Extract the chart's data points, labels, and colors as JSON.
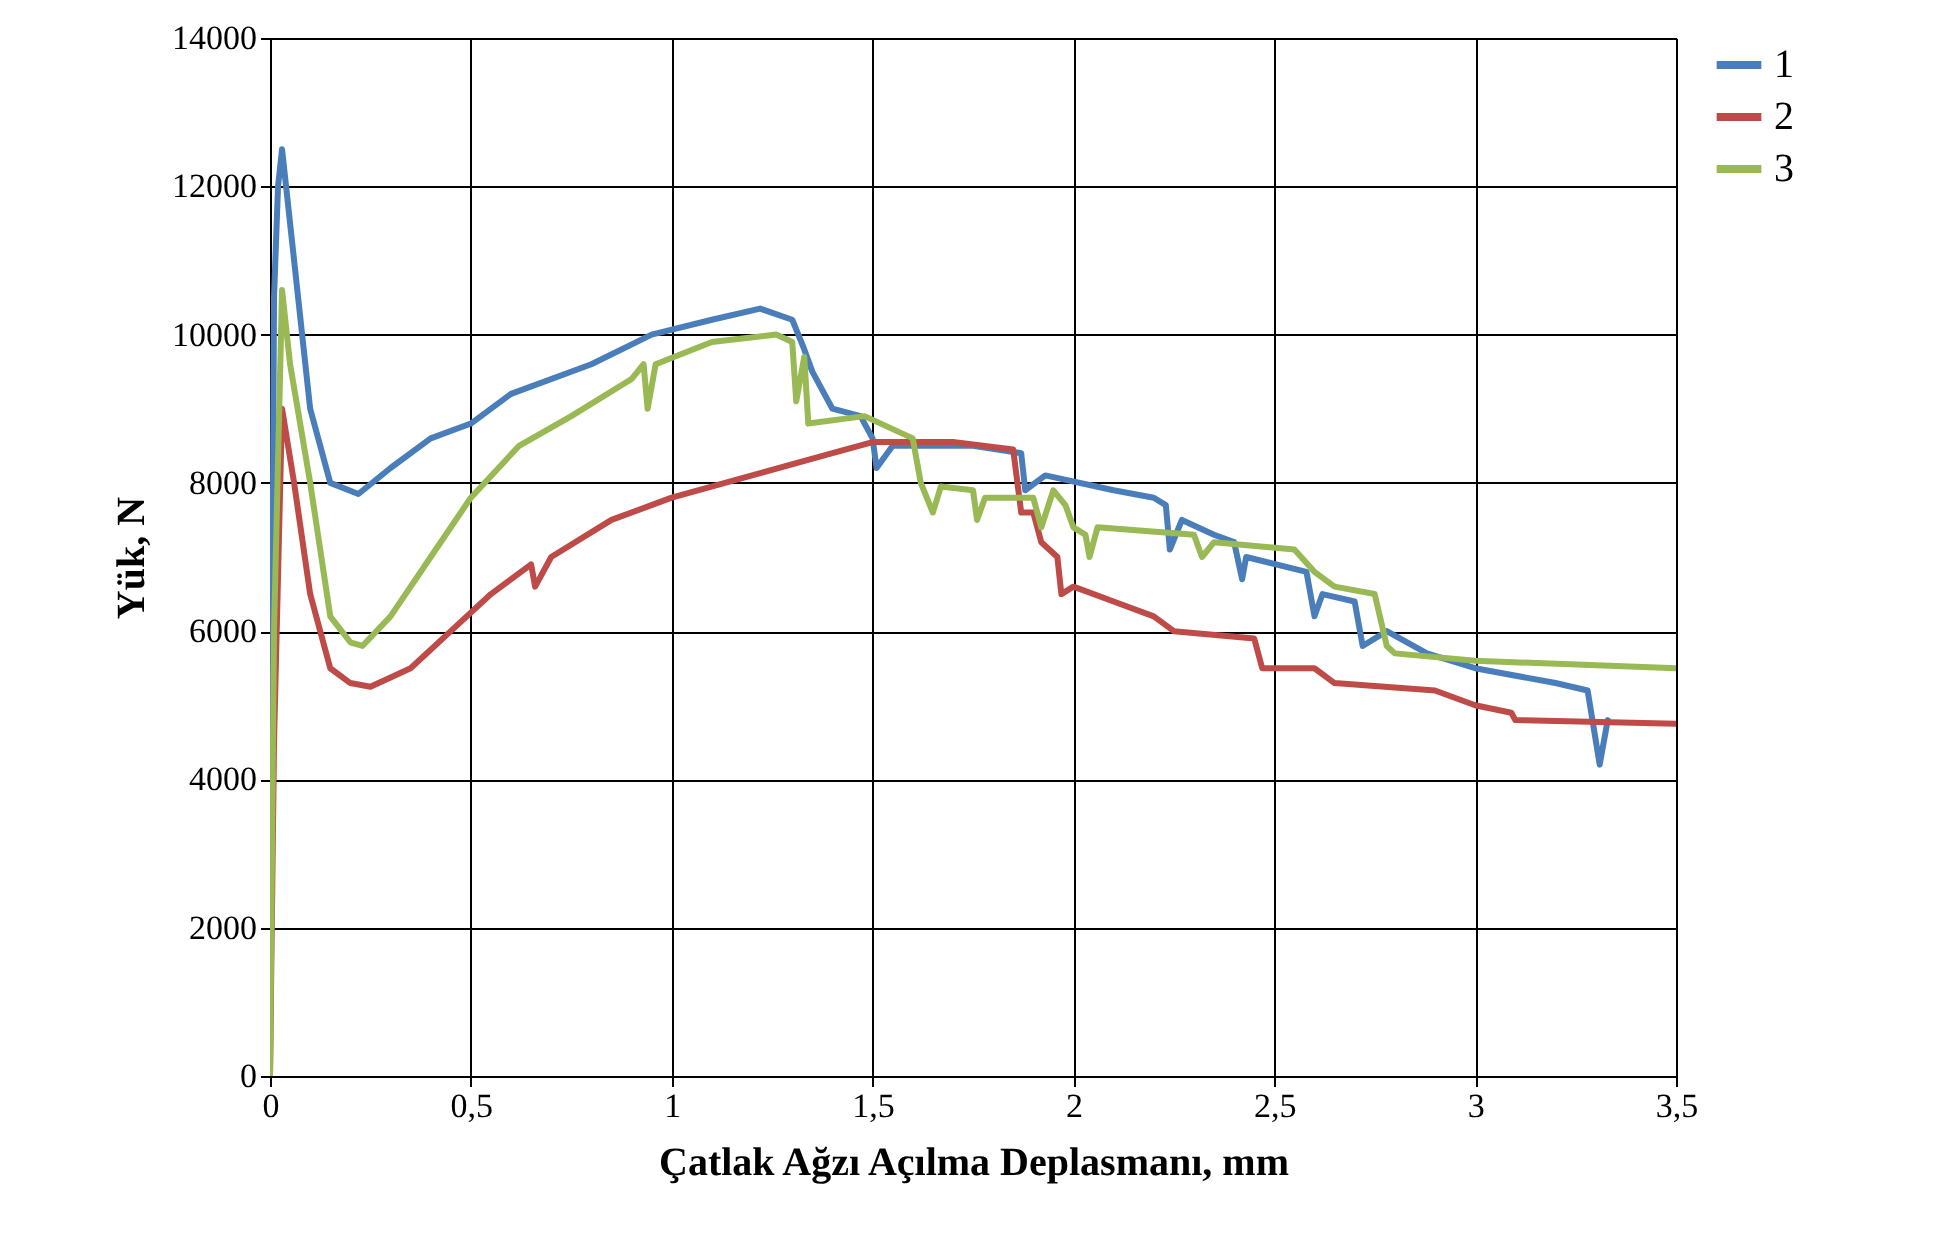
{
  "chart_data": {
    "type": "line",
    "xlabel": "Çatlak Ağzı Açılma Deplasmanı, mm",
    "ylabel": "Yük, N",
    "xlim": [
      0,
      3.5
    ],
    "xticks": [
      0,
      {
        "value": 0.5,
        "label": "0,5"
      },
      1,
      {
        "value": 1.5,
        "label": "1,5"
      },
      2,
      {
        "value": 2.5,
        "label": "2,5"
      },
      3,
      {
        "value": 3.5,
        "label": "3,5"
      }
    ],
    "ylim": [
      0,
      14000
    ],
    "yticks": [
      0,
      2000,
      4000,
      6000,
      8000,
      10000,
      12000,
      14000
    ],
    "grid": true,
    "legend": "right",
    "marker": "none",
    "line_style": "solid",
    "series": [
      {
        "name": "1",
        "color": "#4a7ebb",
        "x": [
          0,
          0.01,
          0.02,
          0.03,
          0.05,
          0.1,
          0.15,
          0.22,
          0.3,
          0.4,
          0.5,
          0.6,
          0.8,
          0.95,
          1.1,
          1.22,
          1.3,
          1.33,
          1.35,
          1.4,
          1.47,
          1.5,
          1.51,
          1.55,
          1.75,
          1.87,
          1.88,
          1.93,
          2.1,
          2.2,
          2.23,
          2.24,
          2.27,
          2.35,
          2.4,
          2.42,
          2.43,
          2.58,
          2.6,
          2.62,
          2.7,
          2.72,
          2.78,
          2.88,
          3.0,
          3.2,
          3.28,
          3.31,
          3.33
        ],
        "values": [
          0,
          10500,
          12000,
          12500,
          11500,
          9000,
          8000,
          7850,
          8200,
          8600,
          8800,
          9200,
          9600,
          10000,
          10200,
          10350,
          10200,
          9800,
          9500,
          9000,
          8900,
          8600,
          8200,
          8500,
          8500,
          8400,
          7900,
          8100,
          7900,
          7800,
          7700,
          7100,
          7500,
          7300,
          7200,
          6700,
          7000,
          6800,
          6200,
          6500,
          6400,
          5800,
          6000,
          5700,
          5500,
          5300,
          5200,
          4200,
          4800
        ]
      },
      {
        "name": "2",
        "color": "#be4b48",
        "x": [
          0,
          0.01,
          0.03,
          0.06,
          0.1,
          0.15,
          0.2,
          0.25,
          0.35,
          0.45,
          0.55,
          0.65,
          0.66,
          0.7,
          0.85,
          1.0,
          1.2,
          1.4,
          1.5,
          1.7,
          1.85,
          1.87,
          1.9,
          1.92,
          1.96,
          1.97,
          2.0,
          2.1,
          2.2,
          2.25,
          2.45,
          2.47,
          2.6,
          2.65,
          2.9,
          3.0,
          3.09,
          3.1,
          3.5
        ],
        "values": [
          0,
          4500,
          9000,
          8000,
          6500,
          5500,
          5300,
          5250,
          5500,
          6000,
          6500,
          6900,
          6600,
          7000,
          7500,
          7800,
          8100,
          8400,
          8550,
          8550,
          8450,
          7600,
          7600,
          7200,
          7000,
          6500,
          6600,
          6400,
          6200,
          6000,
          5900,
          5500,
          5500,
          5300,
          5200,
          5000,
          4900,
          4800,
          4750
        ]
      },
      {
        "name": "3",
        "color": "#98b954",
        "x": [
          0,
          0.01,
          0.03,
          0.05,
          0.1,
          0.15,
          0.2,
          0.23,
          0.3,
          0.4,
          0.5,
          0.62,
          0.75,
          0.9,
          0.93,
          0.94,
          0.96,
          1.1,
          1.26,
          1.3,
          1.31,
          1.33,
          1.34,
          1.48,
          1.6,
          1.62,
          1.65,
          1.67,
          1.75,
          1.76,
          1.78,
          1.9,
          1.92,
          1.95,
          1.98,
          2.0,
          2.03,
          2.04,
          2.06,
          2.3,
          2.32,
          2.35,
          2.55,
          2.6,
          2.65,
          2.75,
          2.78,
          2.8,
          3.0,
          3.5
        ],
        "values": [
          0,
          6000,
          10600,
          9600,
          8000,
          6200,
          5850,
          5800,
          6200,
          7000,
          7800,
          8500,
          8900,
          9400,
          9600,
          9000,
          9600,
          9900,
          10000,
          9900,
          9100,
          9700,
          8800,
          8900,
          8600,
          8000,
          7600,
          7950,
          7900,
          7500,
          7800,
          7800,
          7400,
          7900,
          7700,
          7400,
          7300,
          7000,
          7400,
          7300,
          7000,
          7200,
          7100,
          6800,
          6600,
          6500,
          5800,
          5700,
          5600,
          5500
        ]
      }
    ]
  }
}
